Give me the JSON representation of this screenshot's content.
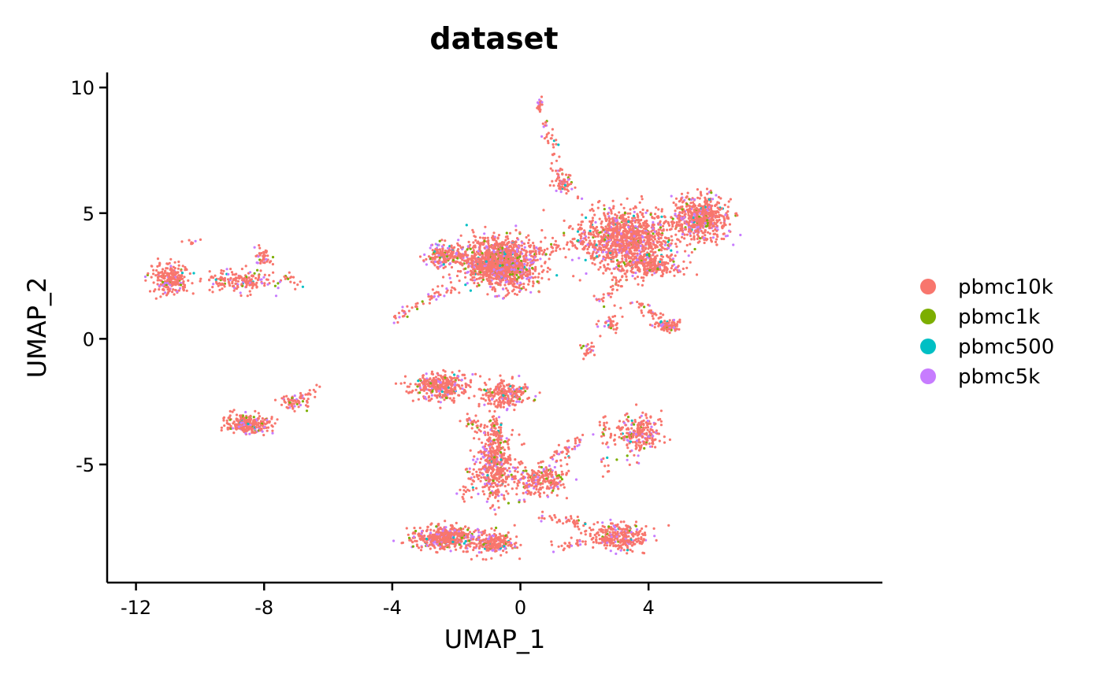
{
  "chart_data": {
    "type": "scatter",
    "title": "dataset",
    "xlabel": "UMAP_1",
    "ylabel": "UMAP_2",
    "xlim": [
      -12.9,
      11.3
    ],
    "ylim": [
      -9.7,
      10.6
    ],
    "x_ticks": [
      -12,
      -8,
      -4,
      0,
      4
    ],
    "y_ticks": [
      -5,
      0,
      5,
      10
    ],
    "x_tick_labels": [
      "-12",
      "-8",
      "-4",
      "0",
      "4"
    ],
    "y_tick_labels": [
      "-5",
      "0",
      "5",
      "10"
    ],
    "grid": false,
    "legend_position": "right",
    "series": [
      {
        "name": "pbmc10k",
        "color": "#F8766D"
      },
      {
        "name": "pbmc1k",
        "color": "#7CAE00"
      },
      {
        "name": "pbmc500",
        "color": "#00BFC4"
      },
      {
        "name": "pbmc5k",
        "color": "#C77CFF"
      }
    ],
    "clusters": [
      {
        "center": [
          -0.6,
          3.0
        ],
        "spread": [
          1.0,
          0.9
        ],
        "count": 1400
      },
      {
        "center": [
          -2.3,
          3.3
        ],
        "spread": [
          0.6,
          0.4
        ],
        "count": 200
      },
      {
        "center": [
          3.3,
          4.0
        ],
        "spread": [
          1.3,
          1.0
        ],
        "count": 1100
      },
      {
        "center": [
          5.6,
          4.8
        ],
        "spread": [
          0.8,
          0.8
        ],
        "count": 600
      },
      {
        "center": [
          3.9,
          2.9
        ],
        "spread": [
          1.0,
          0.4
        ],
        "count": 250
      },
      {
        "center": [
          4.6,
          0.5
        ],
        "spread": [
          0.4,
          0.2
        ],
        "count": 80
      },
      {
        "center": [
          2.8,
          0.6
        ],
        "spread": [
          0.3,
          0.4
        ],
        "count": 40
      },
      {
        "center": [
          2.1,
          -0.4
        ],
        "spread": [
          0.2,
          0.3
        ],
        "count": 25
      },
      {
        "center": [
          1.3,
          6.2
        ],
        "spread": [
          0.3,
          0.3
        ],
        "count": 50
      },
      {
        "center": [
          0.6,
          9.3
        ],
        "spread": [
          0.1,
          0.2
        ],
        "count": 20
      },
      {
        "center": [
          -10.9,
          2.4
        ],
        "spread": [
          0.5,
          0.6
        ],
        "count": 250
      },
      {
        "center": [
          -8.8,
          2.3
        ],
        "spread": [
          0.9,
          0.4
        ],
        "count": 180
      },
      {
        "center": [
          -8.0,
          3.2
        ],
        "spread": [
          0.3,
          0.4
        ],
        "count": 40
      },
      {
        "center": [
          -8.5,
          -3.4
        ],
        "spread": [
          0.6,
          0.3
        ],
        "count": 280
      },
      {
        "center": [
          -7.0,
          -2.5
        ],
        "spread": [
          0.5,
          0.3
        ],
        "count": 60
      },
      {
        "center": [
          -2.5,
          -1.9
        ],
        "spread": [
          0.8,
          0.5
        ],
        "count": 350
      },
      {
        "center": [
          -0.5,
          -2.2
        ],
        "spread": [
          0.7,
          0.5
        ],
        "count": 250
      },
      {
        "center": [
          -0.8,
          -5.0
        ],
        "spread": [
          0.5,
          1.3
        ],
        "count": 450
      },
      {
        "center": [
          0.6,
          -5.6
        ],
        "spread": [
          0.8,
          0.6
        ],
        "count": 250
      },
      {
        "center": [
          -2.4,
          -7.9
        ],
        "spread": [
          0.9,
          0.4
        ],
        "count": 450
      },
      {
        "center": [
          -0.9,
          -8.1
        ],
        "spread": [
          0.6,
          0.4
        ],
        "count": 250
      },
      {
        "center": [
          3.0,
          -7.9
        ],
        "spread": [
          0.9,
          0.5
        ],
        "count": 300
      },
      {
        "center": [
          3.7,
          -3.8
        ],
        "spread": [
          0.6,
          0.7
        ],
        "count": 250
      }
    ],
    "trails": [
      {
        "from": [
          -4.0,
          0.7
        ],
        "to": [
          -1.8,
          2.4
        ],
        "count": 60
      },
      {
        "from": [
          -10.4,
          3.8
        ],
        "to": [
          -10.2,
          3.9
        ],
        "count": 8
      },
      {
        "from": [
          -7.5,
          2.4
        ],
        "to": [
          -6.8,
          2.3
        ],
        "count": 15
      },
      {
        "from": [
          -7.3,
          -2.7
        ],
        "to": [
          -6.2,
          -1.8
        ],
        "count": 20
      },
      {
        "from": [
          -9.4,
          -3.1
        ],
        "to": [
          -8.8,
          -3.0
        ],
        "count": 10
      },
      {
        "from": [
          0.7,
          8.7
        ],
        "to": [
          1.2,
          7.0
        ],
        "count": 30
      },
      {
        "from": [
          1.0,
          6.8
        ],
        "to": [
          1.8,
          5.6
        ],
        "count": 25
      },
      {
        "from": [
          0.3,
          3.4
        ],
        "to": [
          2.2,
          4.0
        ],
        "count": 60
      },
      {
        "from": [
          2.4,
          1.3
        ],
        "to": [
          3.4,
          2.8
        ],
        "count": 40
      },
      {
        "from": [
          3.6,
          1.5
        ],
        "to": [
          4.5,
          0.5
        ],
        "count": 40
      },
      {
        "from": [
          -0.8,
          -3.1
        ],
        "to": [
          -0.8,
          -4.0
        ],
        "count": 50
      },
      {
        "from": [
          1.0,
          -4.8
        ],
        "to": [
          2.0,
          -3.9
        ],
        "count": 50
      },
      {
        "from": [
          0.5,
          -7.0
        ],
        "to": [
          2.2,
          -7.4
        ],
        "count": 40
      },
      {
        "from": [
          -1.8,
          -6.5
        ],
        "to": [
          -1.4,
          -5.2
        ],
        "count": 30
      },
      {
        "from": [
          2.7,
          -5.5
        ],
        "to": [
          2.6,
          -3.0
        ],
        "count": 30
      },
      {
        "from": [
          1.0,
          -8.2
        ],
        "to": [
          2.0,
          -8.2
        ],
        "count": 25
      },
      {
        "from": [
          -1.7,
          -3.2
        ],
        "to": [
          -1.2,
          -3.6
        ],
        "count": 30
      }
    ]
  }
}
